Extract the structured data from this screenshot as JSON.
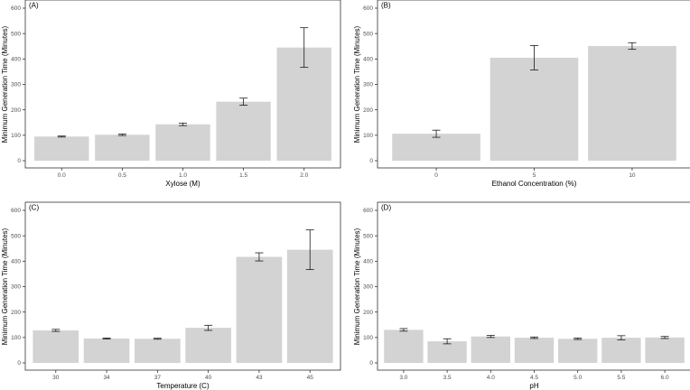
{
  "chart_data": [
    {
      "type": "bar",
      "panel_label": "(A)",
      "categories": [
        "0.0",
        "0.5",
        "1.0",
        "1.5",
        "2.0"
      ],
      "values": [
        95,
        102,
        143,
        232,
        445
      ],
      "errors": [
        2,
        3,
        5,
        14,
        78
      ],
      "title": "",
      "xlabel": "Xylose (M)",
      "ylabel": "Minimum Generation Time (Minutes)",
      "ylim": [
        0,
        600
      ],
      "yticks": [
        "0",
        "100",
        "200",
        "300",
        "400",
        "500",
        "600"
      ],
      "bar_color": "#d3d3d3"
    },
    {
      "type": "bar",
      "panel_label": "(B)",
      "categories": [
        "0",
        "5",
        "10"
      ],
      "values": [
        106,
        405,
        451
      ],
      "errors": [
        14,
        48,
        13
      ],
      "title": "",
      "xlabel": "Ethanol Concentration (%)",
      "ylabel": "Minimum Generation Time (Minutes)",
      "ylim": [
        0,
        600
      ],
      "yticks": [
        "0",
        "100",
        "200",
        "300",
        "400",
        "500",
        "600"
      ],
      "bar_color": "#d3d3d3"
    },
    {
      "type": "bar",
      "panel_label": "(C)",
      "categories": [
        "30",
        "34",
        "37",
        "40",
        "43",
        "45"
      ],
      "values": [
        128,
        96,
        95,
        138,
        417,
        445
      ],
      "errors": [
        4,
        2,
        2,
        10,
        16,
        78
      ],
      "title": "",
      "xlabel": "Temperature (C)",
      "ylabel": "Minimum Generation Time (Minutes)",
      "ylim": [
        0,
        600
      ],
      "yticks": [
        "0",
        "100",
        "200",
        "300",
        "400",
        "500",
        "600"
      ],
      "bar_color": "#d3d3d3"
    },
    {
      "type": "bar",
      "panel_label": "(D)",
      "categories": [
        "3.0",
        "3.5",
        "4.0",
        "4.5",
        "5.0",
        "5.5",
        "6.0"
      ],
      "values": [
        130,
        85,
        104,
        99,
        95,
        99,
        100
      ],
      "errors": [
        5,
        10,
        4,
        3,
        3,
        8,
        4
      ],
      "title": "",
      "xlabel": "pH",
      "ylabel": "Minimum Generation Time (Minutes)",
      "ylim": [
        0,
        600
      ],
      "yticks": [
        "0",
        "100",
        "200",
        "300",
        "400",
        "500",
        "600"
      ],
      "bar_color": "#d3d3d3"
    }
  ]
}
